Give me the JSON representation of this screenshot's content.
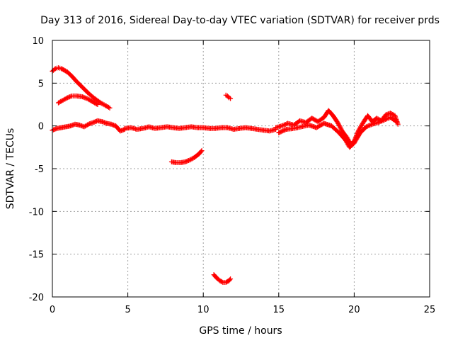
{
  "chart_data": {
    "type": "scatter",
    "title": "Day 313 of 2016, Sidereal Day-to-day VTEC variation (SDTVAR) for receiver prds",
    "xlabel": "GPS time / hours",
    "ylabel": "SDTVAR / TECUs",
    "xlim": [
      0,
      25
    ],
    "ylim": [
      -20,
      10
    ],
    "xticks": [
      "0",
      "5",
      "10",
      "15",
      "20",
      "25"
    ],
    "yticks": [
      "10",
      "5",
      "0",
      "-5",
      "-10",
      "-15",
      "-20"
    ],
    "grid": true,
    "marker": "+",
    "color": "#ff0000",
    "legend": "none",
    "series": [
      {
        "name": "arc-decreasing-top",
        "x": [
          0.0,
          0.2,
          0.4,
          0.6,
          0.8,
          1.0,
          1.3,
          1.6,
          2.0,
          2.4,
          2.8,
          3.2,
          3.5,
          3.8
        ],
        "y": [
          6.4,
          6.7,
          6.8,
          6.7,
          6.5,
          6.3,
          5.8,
          5.2,
          4.5,
          3.8,
          3.2,
          2.7,
          2.4,
          2.1
        ]
      },
      {
        "name": "arc-rising-hump",
        "x": [
          0.4,
          0.7,
          1.0,
          1.3,
          1.6,
          2.0,
          2.3,
          2.6,
          3.0
        ],
        "y": [
          2.7,
          3.0,
          3.3,
          3.5,
          3.5,
          3.4,
          3.2,
          2.9,
          2.5
        ]
      },
      {
        "name": "baseline-early",
        "x": [
          0.0,
          0.3,
          0.6,
          0.9,
          1.2,
          1.5,
          1.8,
          2.1,
          2.4,
          2.7,
          3.0,
          3.3,
          3.6,
          3.9,
          4.2,
          4.5,
          4.8
        ],
        "y": [
          -0.5,
          -0.3,
          -0.2,
          -0.1,
          0.0,
          0.2,
          0.1,
          -0.1,
          0.2,
          0.4,
          0.6,
          0.5,
          0.3,
          0.2,
          0.0,
          -0.6,
          -0.4
        ]
      },
      {
        "name": "baseline-mid",
        "x": [
          4.8,
          5.2,
          5.6,
          6.0,
          6.4,
          6.8,
          7.2,
          7.6,
          8.0,
          8.4,
          8.8,
          9.2,
          9.6,
          10.0,
          10.4,
          10.8,
          11.2,
          11.6,
          12.0,
          12.4,
          12.8,
          13.2,
          13.6,
          14.0,
          14.4,
          14.8
        ],
        "y": [
          -0.3,
          -0.2,
          -0.4,
          -0.3,
          -0.1,
          -0.3,
          -0.2,
          -0.1,
          -0.2,
          -0.3,
          -0.2,
          -0.1,
          -0.2,
          -0.2,
          -0.3,
          -0.3,
          -0.2,
          -0.2,
          -0.4,
          -0.3,
          -0.2,
          -0.3,
          -0.4,
          -0.5,
          -0.6,
          -0.4
        ]
      },
      {
        "name": "baseline-noisy",
        "x": [
          14.8,
          15.2,
          15.6,
          16.0,
          16.4,
          16.8,
          17.2,
          17.6,
          18.0,
          18.3,
          18.6,
          18.9,
          19.2,
          19.5,
          19.8,
          20.0,
          20.3,
          20.6,
          20.9,
          21.2,
          21.5,
          21.8,
          22.1,
          22.4,
          22.7,
          22.9
        ],
        "y": [
          -0.2,
          0.0,
          0.3,
          0.1,
          0.6,
          0.4,
          0.9,
          0.5,
          1.0,
          1.8,
          1.2,
          0.4,
          -0.6,
          -1.3,
          -2.2,
          -1.8,
          -0.5,
          0.4,
          1.2,
          0.5,
          0.9,
          0.6,
          1.3,
          1.5,
          1.2,
          0.2
        ]
      },
      {
        "name": "baseline-noisy-lower",
        "x": [
          15.0,
          15.5,
          16.0,
          16.5,
          17.0,
          17.5,
          18.0,
          18.5,
          19.0,
          19.4,
          19.7,
          20.0,
          20.4,
          20.8,
          21.2,
          21.6,
          22.0,
          22.4,
          22.8
        ],
        "y": [
          -0.8,
          -0.4,
          -0.3,
          -0.1,
          0.1,
          -0.2,
          0.3,
          0.0,
          -0.8,
          -1.6,
          -2.5,
          -2.0,
          -0.8,
          -0.1,
          0.2,
          0.4,
          0.7,
          1.0,
          0.5
        ]
      },
      {
        "name": "arc-negative-mid",
        "x": [
          7.9,
          8.2,
          8.5,
          8.8,
          9.1,
          9.4,
          9.7,
          9.9
        ],
        "y": [
          -4.2,
          -4.3,
          -4.3,
          -4.2,
          -4.0,
          -3.7,
          -3.3,
          -2.9
        ]
      },
      {
        "name": "short-segment-positive",
        "x": [
          11.5,
          11.6,
          11.7,
          11.8
        ],
        "y": [
          3.6,
          3.5,
          3.3,
          3.2
        ]
      },
      {
        "name": "arc-deep-negative",
        "x": [
          10.7,
          10.9,
          11.1,
          11.3,
          11.5,
          11.7,
          11.8
        ],
        "y": [
          -17.4,
          -17.8,
          -18.1,
          -18.3,
          -18.3,
          -18.1,
          -17.9
        ]
      }
    ]
  }
}
